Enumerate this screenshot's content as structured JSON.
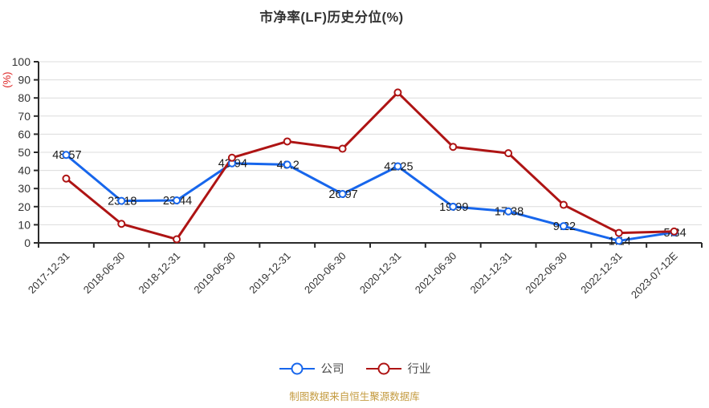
{
  "title": {
    "text": "市净率(LF)历史分位(%)"
  },
  "chart_data": {
    "type": "line",
    "categories": [
      "2017-12-31",
      "2018-06-30",
      "2018-12-31",
      "2019-06-30",
      "2019-12-31",
      "2020-06-30",
      "2020-12-31",
      "2021-06-30",
      "2021-12-31",
      "2022-06-30",
      "2022-12-31",
      "2023-07-12E"
    ],
    "series": [
      {
        "name": "公司",
        "color": "#1766EC",
        "values": [
          48.57,
          23.18,
          23.44,
          43.94,
          43.2,
          26.97,
          42.25,
          19.99,
          17.38,
          9.22,
          1.14,
          5.84
        ],
        "show_point_labels": true
      },
      {
        "name": "行业",
        "color": "#AE1414",
        "values": [
          35.5,
          10.5,
          2,
          47,
          56,
          52,
          83,
          53,
          49.5,
          21,
          5.5,
          6.3
        ],
        "show_point_labels": false
      }
    ],
    "ylabel": "(%)",
    "ylim": [
      0,
      100
    ],
    "yticks": [
      0,
      10,
      20,
      30,
      40,
      50,
      60,
      70,
      80,
      90,
      100
    ],
    "grid": true,
    "legend_position": "bottom",
    "x_label_rotation": -45
  },
  "footer": {
    "source_note": "制图数据来自恒生聚源数据库"
  },
  "colors": {
    "grid": "#DCDCDC",
    "axis": "#2B2B2B",
    "tick_text": "#333333",
    "value_label": "#1A1A1A",
    "y_unit_label": "#DD2222",
    "title_text": "#333333",
    "legend_text": "#4A4A4A",
    "footer_text": "#C49B40"
  }
}
